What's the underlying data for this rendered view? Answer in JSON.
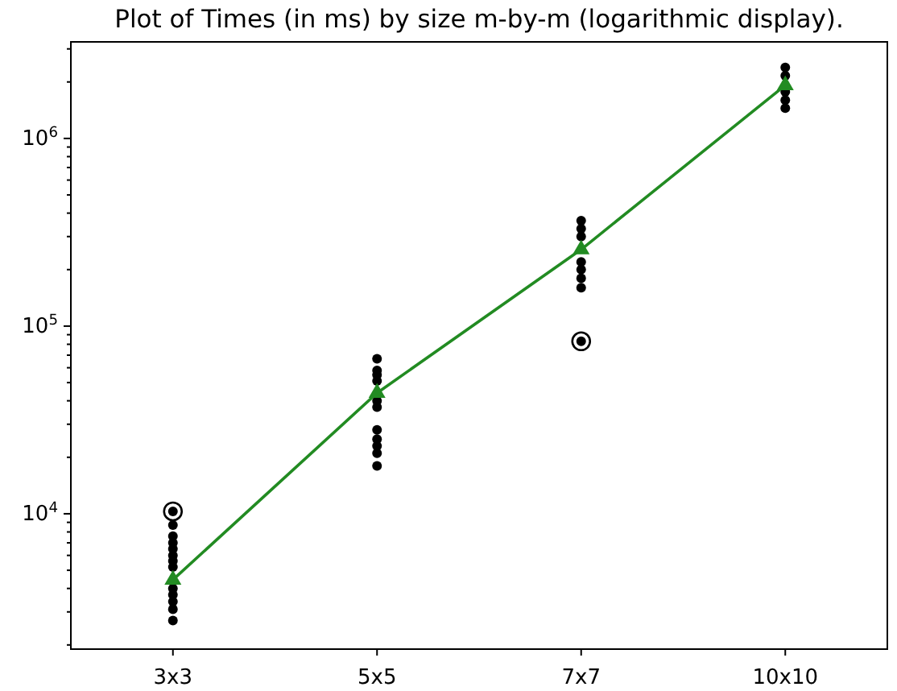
{
  "chart_data": {
    "type": "scatter",
    "title": "Plot of Times (in ms) by size m-by-m (logarithmic display).",
    "categories": [
      "3x3",
      "5x5",
      "7x7",
      "10x10"
    ],
    "log": "y",
    "ylim": [
      1900,
      3270000
    ],
    "yticks": [
      {
        "value": 10000,
        "label": "10$^{4}$"
      },
      {
        "value": 100000,
        "label": "10$^{5}$"
      },
      {
        "value": 1000000,
        "label": "10$^{6}$"
      },
      {
        "value": 2000,
        "label": null
      },
      {
        "value": 3000,
        "label": null
      },
      {
        "value": 4000,
        "label": null
      },
      {
        "value": 5000,
        "label": null
      },
      {
        "value": 6000,
        "label": null
      },
      {
        "value": 7000,
        "label": null
      },
      {
        "value": 8000,
        "label": null
      },
      {
        "value": 9000,
        "label": null
      },
      {
        "value": 20000,
        "label": null
      },
      {
        "value": 30000,
        "label": null
      },
      {
        "value": 40000,
        "label": null
      },
      {
        "value": 50000,
        "label": null
      },
      {
        "value": 60000,
        "label": null
      },
      {
        "value": 70000,
        "label": null
      },
      {
        "value": 80000,
        "label": null
      },
      {
        "value": 90000,
        "label": null
      },
      {
        "value": 200000,
        "label": null
      },
      {
        "value": 300000,
        "label": null
      },
      {
        "value": 400000,
        "label": null
      },
      {
        "value": 500000,
        "label": null
      },
      {
        "value": 600000,
        "label": null
      },
      {
        "value": 700000,
        "label": null
      },
      {
        "value": 800000,
        "label": null
      },
      {
        "value": 900000,
        "label": null
      },
      {
        "value": 2000000,
        "label": null
      },
      {
        "value": 3000000,
        "label": null
      }
    ],
    "grid": false,
    "series": [
      {
        "marker": "circle",
        "color": "#000000",
        "x": [
          "3x3",
          "3x3",
          "3x3",
          "3x3",
          "3x3",
          "3x3",
          "3x3",
          "3x3",
          "3x3",
          "3x3",
          "3x3",
          "3x3",
          "3x3",
          "5x5",
          "5x5",
          "5x5",
          "5x5",
          "5x5",
          "5x5",
          "5x5",
          "5x5",
          "5x5",
          "5x5",
          "5x5",
          "7x7",
          "7x7",
          "7x7",
          "7x7",
          "7x7",
          "7x7",
          "7x7",
          "7x7",
          "10x10",
          "10x10",
          "10x10",
          "10x10",
          "10x10"
        ],
        "values": [
          10300,
          8700,
          7600,
          7000,
          6500,
          6000,
          5600,
          5200,
          4000,
          3700,
          3400,
          3100,
          2700,
          67000,
          58000,
          55000,
          51000,
          40000,
          37000,
          28000,
          25000,
          23000,
          21000,
          18000,
          365000,
          330000,
          300000,
          220000,
          200000,
          180000,
          160000,
          83000,
          2390000,
          2160000,
          1770000,
          1600000,
          1450000
        ]
      },
      {
        "marker": "circle",
        "color": "#000000",
        "x": [
          "3x3",
          "7x7"
        ],
        "values": [
          10300,
          83000
        ]
      },
      {
        "type": "line",
        "marker": "triangle",
        "line_style": "solid",
        "color": "#228b22",
        "values": [
          4450,
          44000,
          256000,
          1920000
        ]
      }
    ]
  }
}
